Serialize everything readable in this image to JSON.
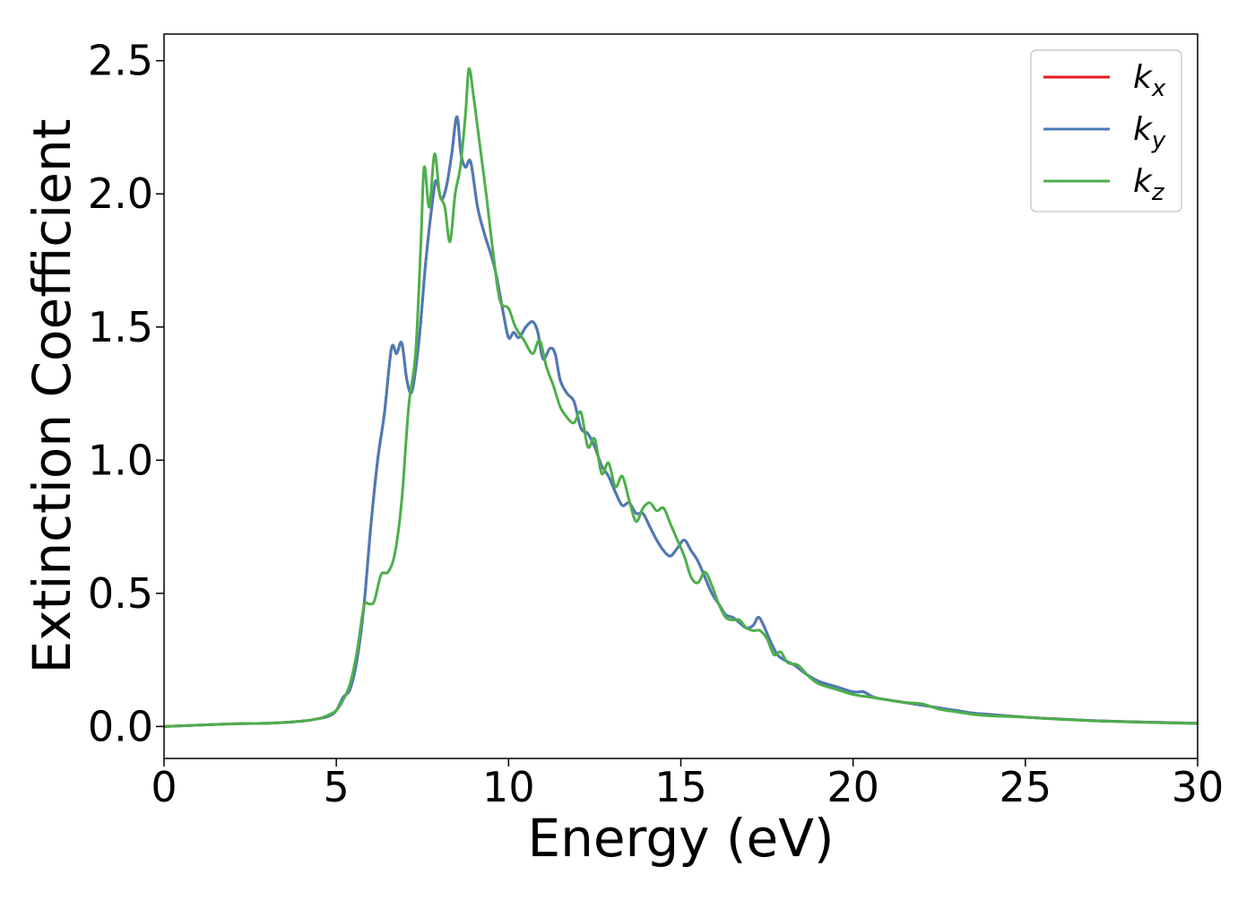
{
  "chart_data": {
    "type": "line",
    "title": "",
    "xlabel": "Energy (eV)",
    "ylabel": "Extinction Coefficient",
    "xlim": [
      0,
      30
    ],
    "ylim": [
      -0.12,
      2.6
    ],
    "x_ticks": [
      "0",
      "5",
      "10",
      "15",
      "20",
      "25",
      "30"
    ],
    "y_ticks": [
      "0.0",
      "0.5",
      "1.0",
      "1.5",
      "2.0",
      "2.5"
    ],
    "grid": false,
    "legend_position": "top-right",
    "series": [
      {
        "name": "k",
        "subscript": "x",
        "color": "#e41a1c",
        "points": [
          [
            0,
            0
          ],
          [
            2,
            0.01
          ],
          [
            3,
            0.012
          ],
          [
            4,
            0.02
          ],
          [
            4.5,
            0.03
          ],
          [
            4.8,
            0.04
          ],
          [
            5,
            0.06
          ],
          [
            5.2,
            0.11
          ],
          [
            5.4,
            0.14
          ],
          [
            5.6,
            0.25
          ],
          [
            5.8,
            0.45
          ],
          [
            6,
            0.75
          ],
          [
            6.2,
            1.0
          ],
          [
            6.4,
            1.18
          ],
          [
            6.6,
            1.42
          ],
          [
            6.75,
            1.4
          ],
          [
            6.9,
            1.44
          ],
          [
            7.05,
            1.3
          ],
          [
            7.2,
            1.26
          ],
          [
            7.4,
            1.45
          ],
          [
            7.6,
            1.75
          ],
          [
            7.8,
            1.98
          ],
          [
            7.9,
            2.05
          ],
          [
            8.05,
            1.98
          ],
          [
            8.2,
            2.03
          ],
          [
            8.35,
            2.15
          ],
          [
            8.5,
            2.29
          ],
          [
            8.62,
            2.15
          ],
          [
            8.75,
            2.1
          ],
          [
            8.9,
            2.12
          ],
          [
            9.1,
            1.95
          ],
          [
            9.3,
            1.85
          ],
          [
            9.6,
            1.72
          ],
          [
            9.85,
            1.55
          ],
          [
            10,
            1.46
          ],
          [
            10.15,
            1.48
          ],
          [
            10.3,
            1.46
          ],
          [
            10.5,
            1.5
          ],
          [
            10.7,
            1.52
          ],
          [
            10.85,
            1.48
          ],
          [
            11,
            1.38
          ],
          [
            11.2,
            1.42
          ],
          [
            11.35,
            1.4
          ],
          [
            11.5,
            1.3
          ],
          [
            11.7,
            1.25
          ],
          [
            11.9,
            1.22
          ],
          [
            12.1,
            1.12
          ],
          [
            12.3,
            1.1
          ],
          [
            12.5,
            1.05
          ],
          [
            12.7,
            0.98
          ],
          [
            12.9,
            0.94
          ],
          [
            13.1,
            0.88
          ],
          [
            13.3,
            0.83
          ],
          [
            13.5,
            0.84
          ],
          [
            13.7,
            0.8
          ],
          [
            13.9,
            0.8
          ],
          [
            14.1,
            0.75
          ],
          [
            14.3,
            0.7
          ],
          [
            14.5,
            0.66
          ],
          [
            14.7,
            0.64
          ],
          [
            14.9,
            0.67
          ],
          [
            15.1,
            0.7
          ],
          [
            15.3,
            0.66
          ],
          [
            15.5,
            0.62
          ],
          [
            15.7,
            0.56
          ],
          [
            15.9,
            0.5
          ],
          [
            16.1,
            0.46
          ],
          [
            16.3,
            0.42
          ],
          [
            16.5,
            0.41
          ],
          [
            16.7,
            0.39
          ],
          [
            16.9,
            0.37
          ],
          [
            17.1,
            0.38
          ],
          [
            17.25,
            0.41
          ],
          [
            17.4,
            0.38
          ],
          [
            17.6,
            0.32
          ],
          [
            17.8,
            0.27
          ],
          [
            18,
            0.25
          ],
          [
            18.3,
            0.23
          ],
          [
            18.6,
            0.2
          ],
          [
            19,
            0.17
          ],
          [
            19.5,
            0.15
          ],
          [
            20,
            0.13
          ],
          [
            20.3,
            0.13
          ],
          [
            20.6,
            0.11
          ],
          [
            21,
            0.1
          ],
          [
            21.5,
            0.09
          ],
          [
            22,
            0.08
          ],
          [
            22.5,
            0.07
          ],
          [
            23,
            0.06
          ],
          [
            23.5,
            0.05
          ],
          [
            24,
            0.045
          ],
          [
            25,
            0.035
          ],
          [
            26,
            0.028
          ],
          [
            27,
            0.022
          ],
          [
            28,
            0.018
          ],
          [
            29,
            0.015
          ],
          [
            30,
            0.012
          ]
        ]
      },
      {
        "name": "k",
        "subscript": "y",
        "color": "#4a7bb7",
        "points": [
          [
            0,
            0
          ],
          [
            2,
            0.01
          ],
          [
            3,
            0.012
          ],
          [
            4,
            0.02
          ],
          [
            4.5,
            0.03
          ],
          [
            4.8,
            0.04
          ],
          [
            5,
            0.06
          ],
          [
            5.2,
            0.11
          ],
          [
            5.4,
            0.14
          ],
          [
            5.6,
            0.25
          ],
          [
            5.8,
            0.45
          ],
          [
            6,
            0.75
          ],
          [
            6.2,
            1.0
          ],
          [
            6.4,
            1.18
          ],
          [
            6.6,
            1.42
          ],
          [
            6.75,
            1.4
          ],
          [
            6.9,
            1.44
          ],
          [
            7.05,
            1.3
          ],
          [
            7.2,
            1.26
          ],
          [
            7.4,
            1.45
          ],
          [
            7.6,
            1.75
          ],
          [
            7.8,
            1.98
          ],
          [
            7.9,
            2.05
          ],
          [
            8.05,
            1.98
          ],
          [
            8.2,
            2.03
          ],
          [
            8.35,
            2.15
          ],
          [
            8.5,
            2.29
          ],
          [
            8.62,
            2.15
          ],
          [
            8.75,
            2.1
          ],
          [
            8.9,
            2.12
          ],
          [
            9.1,
            1.95
          ],
          [
            9.3,
            1.85
          ],
          [
            9.6,
            1.72
          ],
          [
            9.85,
            1.55
          ],
          [
            10,
            1.46
          ],
          [
            10.15,
            1.48
          ],
          [
            10.3,
            1.46
          ],
          [
            10.5,
            1.5
          ],
          [
            10.7,
            1.52
          ],
          [
            10.85,
            1.48
          ],
          [
            11,
            1.38
          ],
          [
            11.2,
            1.42
          ],
          [
            11.35,
            1.4
          ],
          [
            11.5,
            1.3
          ],
          [
            11.7,
            1.25
          ],
          [
            11.9,
            1.22
          ],
          [
            12.1,
            1.12
          ],
          [
            12.3,
            1.1
          ],
          [
            12.5,
            1.05
          ],
          [
            12.7,
            0.98
          ],
          [
            12.9,
            0.94
          ],
          [
            13.1,
            0.88
          ],
          [
            13.3,
            0.83
          ],
          [
            13.5,
            0.84
          ],
          [
            13.7,
            0.8
          ],
          [
            13.9,
            0.8
          ],
          [
            14.1,
            0.75
          ],
          [
            14.3,
            0.7
          ],
          [
            14.5,
            0.66
          ],
          [
            14.7,
            0.64
          ],
          [
            14.9,
            0.67
          ],
          [
            15.1,
            0.7
          ],
          [
            15.3,
            0.66
          ],
          [
            15.5,
            0.62
          ],
          [
            15.7,
            0.56
          ],
          [
            15.9,
            0.5
          ],
          [
            16.1,
            0.46
          ],
          [
            16.3,
            0.42
          ],
          [
            16.5,
            0.41
          ],
          [
            16.7,
            0.39
          ],
          [
            16.9,
            0.37
          ],
          [
            17.1,
            0.38
          ],
          [
            17.25,
            0.41
          ],
          [
            17.4,
            0.38
          ],
          [
            17.6,
            0.32
          ],
          [
            17.8,
            0.27
          ],
          [
            18,
            0.25
          ],
          [
            18.3,
            0.23
          ],
          [
            18.6,
            0.2
          ],
          [
            19,
            0.17
          ],
          [
            19.5,
            0.15
          ],
          [
            20,
            0.13
          ],
          [
            20.3,
            0.13
          ],
          [
            20.6,
            0.11
          ],
          [
            21,
            0.1
          ],
          [
            21.5,
            0.09
          ],
          [
            22,
            0.08
          ],
          [
            22.5,
            0.07
          ],
          [
            23,
            0.06
          ],
          [
            23.5,
            0.05
          ],
          [
            24,
            0.045
          ],
          [
            25,
            0.035
          ],
          [
            26,
            0.028
          ],
          [
            27,
            0.022
          ],
          [
            28,
            0.018
          ],
          [
            29,
            0.015
          ],
          [
            30,
            0.012
          ]
        ]
      },
      {
        "name": "k",
        "subscript": "z",
        "color": "#4daf4a",
        "points": [
          [
            0,
            0
          ],
          [
            2,
            0.01
          ],
          [
            3,
            0.012
          ],
          [
            4,
            0.02
          ],
          [
            4.5,
            0.03
          ],
          [
            4.8,
            0.045
          ],
          [
            5,
            0.06
          ],
          [
            5.2,
            0.1
          ],
          [
            5.4,
            0.16
          ],
          [
            5.6,
            0.28
          ],
          [
            5.8,
            0.45
          ],
          [
            5.95,
            0.46
          ],
          [
            6.1,
            0.47
          ],
          [
            6.3,
            0.57
          ],
          [
            6.5,
            0.58
          ],
          [
            6.7,
            0.65
          ],
          [
            6.9,
            0.85
          ],
          [
            7.1,
            1.2
          ],
          [
            7.3,
            1.4
          ],
          [
            7.45,
            1.8
          ],
          [
            7.55,
            2.1
          ],
          [
            7.7,
            1.95
          ],
          [
            7.85,
            2.15
          ],
          [
            8,
            2.0
          ],
          [
            8.15,
            1.95
          ],
          [
            8.3,
            1.82
          ],
          [
            8.45,
            2.0
          ],
          [
            8.6,
            2.1
          ],
          [
            8.75,
            2.3
          ],
          [
            8.85,
            2.47
          ],
          [
            9,
            2.35
          ],
          [
            9.15,
            2.2
          ],
          [
            9.35,
            2.0
          ],
          [
            9.55,
            1.78
          ],
          [
            9.75,
            1.6
          ],
          [
            10,
            1.57
          ],
          [
            10.2,
            1.5
          ],
          [
            10.45,
            1.45
          ],
          [
            10.7,
            1.4
          ],
          [
            10.9,
            1.45
          ],
          [
            11.1,
            1.35
          ],
          [
            11.3,
            1.28
          ],
          [
            11.5,
            1.2
          ],
          [
            11.7,
            1.16
          ],
          [
            11.9,
            1.14
          ],
          [
            12.1,
            1.18
          ],
          [
            12.3,
            1.05
          ],
          [
            12.5,
            1.08
          ],
          [
            12.7,
            0.95
          ],
          [
            12.9,
            0.99
          ],
          [
            13.1,
            0.9
          ],
          [
            13.3,
            0.94
          ],
          [
            13.5,
            0.85
          ],
          [
            13.7,
            0.77
          ],
          [
            13.9,
            0.82
          ],
          [
            14.1,
            0.84
          ],
          [
            14.3,
            0.81
          ],
          [
            14.5,
            0.82
          ],
          [
            14.7,
            0.76
          ],
          [
            14.9,
            0.7
          ],
          [
            15.1,
            0.64
          ],
          [
            15.3,
            0.56
          ],
          [
            15.5,
            0.54
          ],
          [
            15.7,
            0.58
          ],
          [
            15.9,
            0.53
          ],
          [
            16.1,
            0.46
          ],
          [
            16.3,
            0.41
          ],
          [
            16.5,
            0.4
          ],
          [
            16.7,
            0.4
          ],
          [
            16.9,
            0.37
          ],
          [
            17.1,
            0.36
          ],
          [
            17.3,
            0.36
          ],
          [
            17.5,
            0.33
          ],
          [
            17.7,
            0.27
          ],
          [
            17.9,
            0.28
          ],
          [
            18.1,
            0.24
          ],
          [
            18.4,
            0.23
          ],
          [
            18.7,
            0.19
          ],
          [
            19,
            0.16
          ],
          [
            19.5,
            0.14
          ],
          [
            20,
            0.12
          ],
          [
            20.5,
            0.11
          ],
          [
            21,
            0.1
          ],
          [
            21.5,
            0.09
          ],
          [
            22,
            0.085
          ],
          [
            22.5,
            0.065
          ],
          [
            23,
            0.055
          ],
          [
            23.5,
            0.045
          ],
          [
            24,
            0.04
          ],
          [
            25,
            0.035
          ],
          [
            26,
            0.027
          ],
          [
            27,
            0.021
          ],
          [
            28,
            0.017
          ],
          [
            29,
            0.014
          ],
          [
            30,
            0.011
          ]
        ]
      }
    ]
  }
}
